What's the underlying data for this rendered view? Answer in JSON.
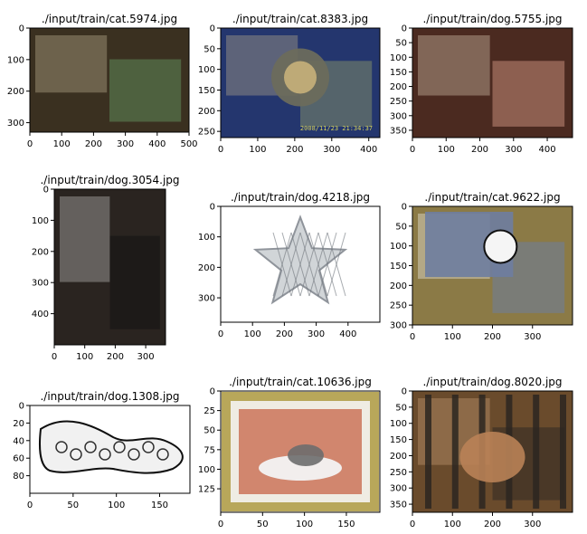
{
  "figure": {
    "panels": [
      {
        "title": "./input/train/cat.5974.jpg",
        "xticks": [
          "0",
          "100",
          "200",
          "300",
          "400",
          "500"
        ],
        "yticks": [
          "0",
          "100",
          "200",
          "300"
        ],
        "label": "cat",
        "colors": {
          "bg": "#3a3020",
          "accent": "#5f8a5a",
          "light": "#cfc0a0"
        }
      },
      {
        "title": "./input/train/cat.8383.jpg",
        "xticks": [
          "0",
          "100",
          "200",
          "300",
          "400"
        ],
        "yticks": [
          "0",
          "50",
          "100",
          "150",
          "200",
          "250"
        ],
        "label": "cat",
        "colors": {
          "bg": "#24366e",
          "accent": "#7e8a6a",
          "light": "#c9b890"
        }
      },
      {
        "title": "./input/train/dog.5755.jpg",
        "xticks": [
          "0",
          "100",
          "200",
          "300",
          "400"
        ],
        "yticks": [
          "0",
          "50",
          "100",
          "150",
          "200",
          "250",
          "300",
          "350"
        ],
        "label": "dog",
        "colors": {
          "bg": "#4b2a20",
          "accent": "#c58a78",
          "light": "#e8d8c0"
        }
      },
      {
        "title": "./input/train/dog.3054.jpg",
        "xticks": [
          "0",
          "100",
          "200",
          "300"
        ],
        "yticks": [
          "0",
          "100",
          "200",
          "300",
          "400"
        ],
        "label": "dog",
        "colors": {
          "bg": "#2a2420",
          "accent": "#121212",
          "light": "#d0d0d0"
        }
      },
      {
        "title": "./input/train/dog.4218.jpg",
        "xticks": [
          "0",
          "100",
          "200",
          "300",
          "400"
        ],
        "yticks": [
          "0",
          "100",
          "200",
          "300"
        ],
        "label": "dog",
        "colors": {
          "bg": "#ffffff",
          "accent": "#8a8f96",
          "light": "#e9ecef"
        }
      },
      {
        "title": "./input/train/cat.9622.jpg",
        "xticks": [
          "0",
          "100",
          "200",
          "300"
        ],
        "yticks": [
          "0",
          "50",
          "100",
          "150",
          "200",
          "250",
          "300"
        ],
        "label": "cat",
        "colors": {
          "bg": "#8b7a46",
          "accent": "#6e7da0",
          "light": "#ffffff"
        }
      },
      {
        "title": "./input/train/dog.1308.jpg",
        "xticks": [
          "0",
          "50",
          "100",
          "150"
        ],
        "yticks": [
          "0",
          "20",
          "40",
          "60",
          "80"
        ],
        "label": "dog",
        "colors": {
          "bg": "#ffffff",
          "accent": "#101010",
          "light": "#bdbdbd"
        }
      },
      {
        "title": "./input/train/cat.10636.jpg",
        "xticks": [
          "0",
          "50",
          "100",
          "150"
        ],
        "yticks": [
          "0",
          "25",
          "50",
          "75",
          "100",
          "125"
        ],
        "label": "cat",
        "colors": {
          "bg": "#1b1a16",
          "accent": "#b8a75a",
          "light": "#f2f0e8"
        }
      },
      {
        "title": "./input/train/dog.8020.jpg",
        "xticks": [
          "0",
          "100",
          "200",
          "300"
        ],
        "yticks": [
          "0",
          "50",
          "100",
          "150",
          "200",
          "250",
          "300",
          "350"
        ],
        "label": "dog",
        "colors": {
          "bg": "#6a4b2c",
          "accent": "#2f2a24",
          "light": "#cfa57d"
        }
      }
    ]
  },
  "chart_data": [
    {
      "type": "image",
      "title": "./input/train/cat.5974.jpg",
      "xlim": [
        0,
        500
      ],
      "ylim": [
        330,
        0
      ],
      "xticks": [
        0,
        100,
        200,
        300,
        400,
        500
      ],
      "yticks": [
        0,
        100,
        200,
        300
      ]
    },
    {
      "type": "image",
      "title": "./input/train/cat.8383.jpg",
      "xlim": [
        0,
        430
      ],
      "ylim": [
        265,
        0
      ],
      "xticks": [
        0,
        100,
        200,
        300,
        400
      ],
      "yticks": [
        0,
        50,
        100,
        150,
        200,
        250
      ]
    },
    {
      "type": "image",
      "title": "./input/train/dog.5755.jpg",
      "xlim": [
        0,
        475
      ],
      "ylim": [
        375,
        0
      ],
      "xticks": [
        0,
        100,
        200,
        300,
        400
      ],
      "yticks": [
        0,
        50,
        100,
        150,
        200,
        250,
        300,
        350
      ]
    },
    {
      "type": "image",
      "title": "./input/train/dog.3054.jpg",
      "xlim": [
        0,
        365
      ],
      "ylim": [
        500,
        0
      ],
      "xticks": [
        0,
        100,
        200,
        300
      ],
      "yticks": [
        0,
        100,
        200,
        300,
        400
      ]
    },
    {
      "type": "image",
      "title": "./input/train/dog.4218.jpg",
      "xlim": [
        0,
        500
      ],
      "ylim": [
        380,
        0
      ],
      "xticks": [
        0,
        100,
        200,
        300,
        400
      ],
      "yticks": [
        0,
        100,
        200,
        300
      ]
    },
    {
      "type": "image",
      "title": "./input/train/cat.9622.jpg",
      "xlim": [
        0,
        400
      ],
      "ylim": [
        300,
        0
      ],
      "xticks": [
        0,
        100,
        200,
        300
      ],
      "yticks": [
        0,
        50,
        100,
        150,
        200,
        250,
        300
      ]
    },
    {
      "type": "image",
      "title": "./input/train/dog.1308.jpg",
      "xlim": [
        0,
        185
      ],
      "ylim": [
        100,
        0
      ],
      "xticks": [
        0,
        50,
        100,
        150
      ],
      "yticks": [
        0,
        20,
        40,
        60,
        80
      ]
    },
    {
      "type": "image",
      "title": "./input/train/cat.10636.jpg",
      "xlim": [
        0,
        190
      ],
      "ylim": [
        155,
        0
      ],
      "xticks": [
        0,
        50,
        100,
        150
      ],
      "yticks": [
        0,
        25,
        50,
        75,
        100,
        125
      ]
    },
    {
      "type": "image",
      "title": "./input/train/dog.8020.jpg",
      "xlim": [
        0,
        400
      ],
      "ylim": [
        375,
        0
      ],
      "xticks": [
        0,
        100,
        200,
        300
      ],
      "yticks": [
        0,
        50,
        100,
        150,
        200,
        250,
        300,
        350
      ]
    }
  ]
}
